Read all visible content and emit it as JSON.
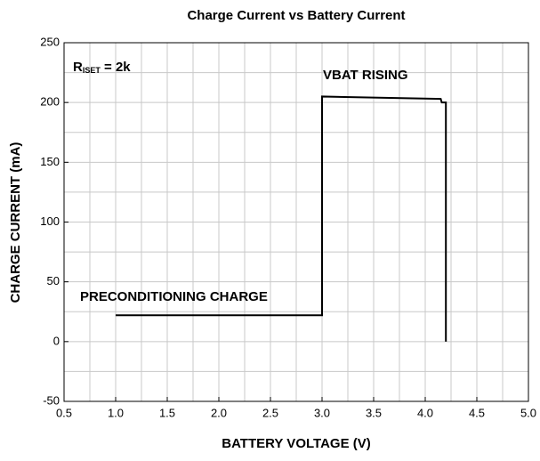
{
  "chart_data": {
    "type": "line",
    "title": "Charge Current vs Battery Current",
    "x_label": "BATTERY VOLTAGE (V)",
    "y_label": "CHARGE CURRENT (mA)",
    "annotations": [
      "VBAT RISING",
      "PRECONDITIONING CHARGE"
    ],
    "rset_label": {
      "main": "R",
      "sub": "ISET",
      "rest": " = 2k"
    },
    "x": [
      1.0,
      3.0,
      3.0,
      4.15,
      4.16,
      4.2,
      4.2
    ],
    "series": [
      {
        "name": "VBAT RISING",
        "color": "#000000",
        "values": [
          22,
          22,
          205,
          203,
          200,
          200,
          0
        ]
      }
    ],
    "xlim": [
      0.5,
      5.0
    ],
    "xticks": [
      0.5,
      {
        "value": 1,
        "label": "1.0"
      },
      1.5,
      {
        "value": 2,
        "label": "2.0"
      },
      2.5,
      {
        "value": 3,
        "label": "3.0"
      },
      3.5,
      {
        "value": 4,
        "label": "4.0"
      },
      4.5,
      {
        "value": 5,
        "label": "5.0"
      }
    ],
    "xminorticks": [
      0.75,
      1.25,
      1.75,
      2.25,
      2.75,
      3.25,
      3.75,
      4.25,
      4.75
    ],
    "ylim": [
      -50,
      250
    ],
    "yticks": [
      -50,
      0,
      50,
      100,
      150,
      200,
      250
    ],
    "yminorticks": [
      -25,
      25,
      75,
      125,
      175,
      225
    ],
    "grid": true
  }
}
